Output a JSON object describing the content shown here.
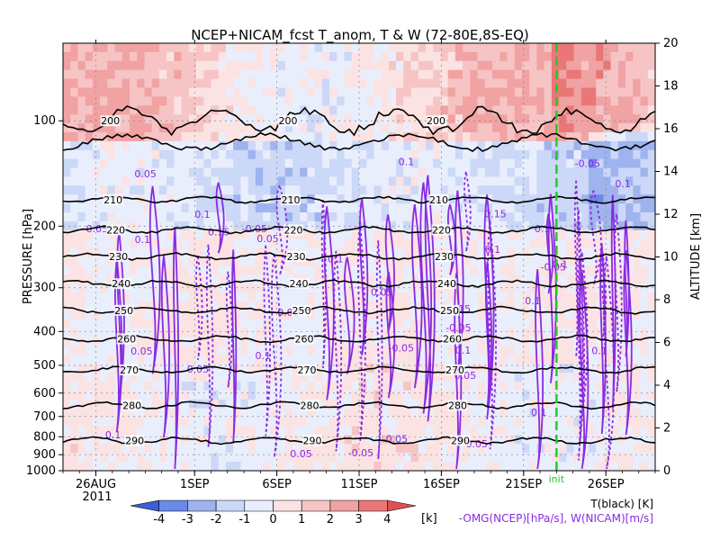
{
  "chart_data": {
    "type": "heatmap",
    "title": "NCEP+NICAM_fcst T_anom, T & W  (72-80E,8S-EQ)",
    "x_axis": {
      "tick_labels": [
        "26AUG",
        "1SEP",
        "6SEP",
        "11SEP",
        "16SEP",
        "21SEP",
        "26SEP"
      ],
      "tick_dates": [
        "2011-08-26",
        "2011-09-01",
        "2011-09-06",
        "2011-09-11",
        "2011-09-16",
        "2011-09-21",
        "2011-09-26"
      ],
      "year_label": "2011",
      "range": [
        "2011-08-24",
        "2011-09-29"
      ]
    },
    "y_left": {
      "label": "PRESSURE [hPa]",
      "ticks": [
        100,
        200,
        300,
        400,
        500,
        600,
        700,
        800,
        900,
        1000
      ],
      "scale": "log",
      "range": [
        1000,
        60
      ]
    },
    "y_right": {
      "label": "ALTITUDE [km]",
      "ticks": [
        0,
        2,
        4,
        6,
        8,
        10,
        12,
        14,
        16,
        18,
        20
      ]
    },
    "init_marker": {
      "date": "2011-09-23",
      "label": "init",
      "color": "#22cc22"
    },
    "shading": {
      "variable": "T_anom",
      "unit": "[k]",
      "levels": [
        -4,
        -3,
        -2,
        -1,
        0,
        1,
        2,
        3,
        4
      ],
      "colors": [
        "#3a5fd9",
        "#6b89e6",
        "#9fb3ef",
        "#cbd8f7",
        "#e9eefc",
        "#fbe3e3",
        "#f6c4c4",
        "#f1a2a2",
        "#ea7777",
        "#e35050"
      ]
    },
    "temperature_contours": {
      "label": "T(black) [K]",
      "levels": [
        {
          "value": 200,
          "pressure": 100
        },
        {
          "value": 210,
          "pressure": 168
        },
        {
          "value": 220,
          "pressure": 205
        },
        {
          "value": 230,
          "pressure": 244
        },
        {
          "value": 240,
          "pressure": 292
        },
        {
          "value": 250,
          "pressure": 348
        },
        {
          "value": 260,
          "pressure": 420
        },
        {
          "value": 270,
          "pressure": 515
        },
        {
          "value": 280,
          "pressure": 650
        },
        {
          "value": 290,
          "pressure": 820
        }
      ],
      "color": "#000000"
    },
    "omega_contours": {
      "label": "-OMG(NCEP)[hPa/s], W(NICAM)[m/s]",
      "labels_shown": [
        "0.05",
        "-0.05",
        "0.1",
        "0.15"
      ],
      "color": "#8a2be2"
    },
    "colorbar_labels": [
      "-4",
      "-3",
      "-2",
      "-1",
      "0",
      "1",
      "2",
      "3",
      "4"
    ]
  }
}
